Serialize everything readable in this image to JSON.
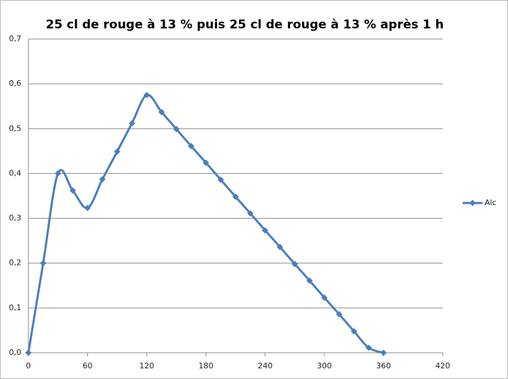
{
  "chart_data": {
    "type": "line",
    "title": "25 cl de rouge à 13 % puis 25 cl de rouge à 13 %  après 1 h",
    "x": [
      0,
      15,
      30,
      45,
      60,
      75,
      90,
      105,
      120,
      135,
      150,
      165,
      180,
      195,
      210,
      225,
      240,
      255,
      270,
      285,
      300,
      315,
      330,
      345,
      360
    ],
    "series": [
      {
        "name": "Alc",
        "color": "#4a7ebb",
        "values": [
          0,
          0.2,
          0.4,
          0.362,
          0.323,
          0.387,
          0.449,
          0.512,
          0.575,
          0.537,
          0.499,
          0.461,
          0.424,
          0.386,
          0.348,
          0.311,
          0.273,
          0.236,
          0.198,
          0.161,
          0.123,
          0.086,
          0.048,
          0.011,
          0
        ]
      }
    ],
    "xlim": [
      0,
      420
    ],
    "xticks": [
      0,
      60,
      120,
      180,
      240,
      300,
      360,
      420
    ],
    "ylim": [
      0,
      0.7
    ],
    "yticks": [
      {
        "value": 0,
        "label": "0,0"
      },
      {
        "value": 0.1,
        "label": "0,1"
      },
      {
        "value": 0.2,
        "label": "0,2"
      },
      {
        "value": 0.3,
        "label": "0,3"
      },
      {
        "value": 0.4,
        "label": "0,4"
      },
      {
        "value": 0.5,
        "label": "0,5"
      },
      {
        "value": 0.6,
        "label": "0,6"
      },
      {
        "value": 0.7,
        "label": "0,7"
      }
    ],
    "grid": true,
    "smooth": true,
    "legend": "right"
  }
}
